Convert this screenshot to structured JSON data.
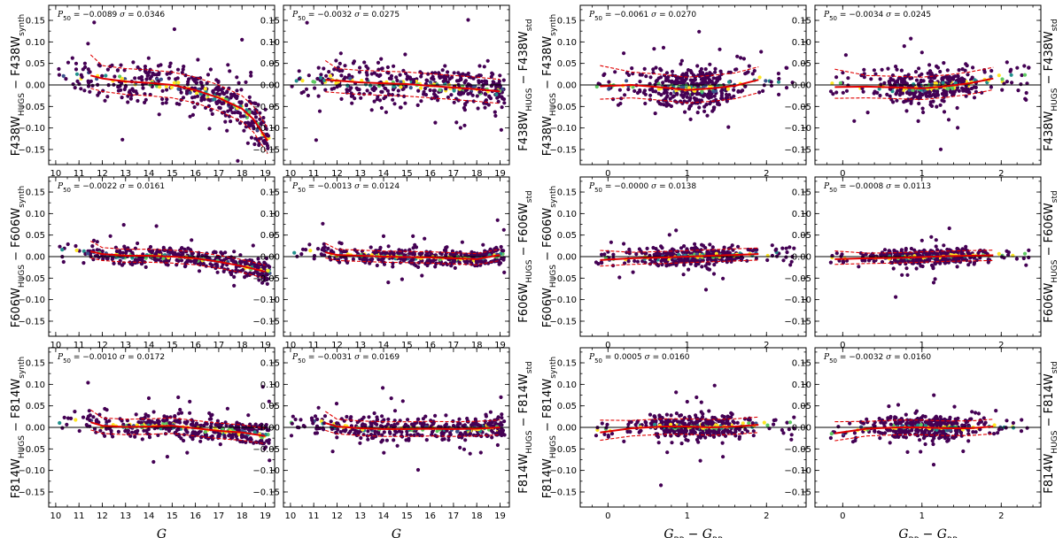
{
  "chart_data": {
    "type": "scatter",
    "description_free": true,
    "ylim": [
      -0.185,
      0.185
    ],
    "yticks": [
      -0.15,
      -0.1,
      -0.05,
      0.0,
      0.05,
      0.1,
      0.15
    ],
    "ytick_labels": [
      "−0.15",
      "−0.10",
      "−0.05",
      "0.00",
      "0.05",
      "0.10",
      "0.15"
    ],
    "columns": [
      {
        "xvar": "G",
        "xlabel": "G",
        "xlim": [
          9.7,
          19.4
        ],
        "xticks": [
          10,
          11,
          12,
          13,
          14,
          15,
          16,
          17,
          18,
          19
        ],
        "xtick_labels": [
          "10",
          "11",
          "12",
          "13",
          "14",
          "15",
          "16",
          "17",
          "18",
          "19"
        ],
        "reference": "synth"
      },
      {
        "xvar": "G",
        "xlabel": "G",
        "xlim": [
          9.7,
          19.4
        ],
        "xticks": [
          10,
          11,
          12,
          13,
          14,
          15,
          16,
          17,
          18,
          19
        ],
        "xtick_labels": [
          "10",
          "11",
          "12",
          "13",
          "14",
          "15",
          "16",
          "17",
          "18",
          "19"
        ],
        "reference": "std"
      },
      {
        "xvar": "color",
        "xlabel": "G_BP − G_RP",
        "xlim": [
          -0.35,
          2.5
        ],
        "xticks": [
          0,
          1,
          2
        ],
        "xtick_labels": [
          "0",
          "1",
          "2"
        ],
        "reference": "synth"
      },
      {
        "xvar": "color",
        "xlabel": "G_BP − G_RP",
        "xlim": [
          -0.35,
          2.5
        ],
        "xticks": [
          0,
          1,
          2
        ],
        "xtick_labels": [
          "0",
          "1",
          "2"
        ],
        "reference": "std"
      }
    ],
    "xlabels": {
      "mag": {
        "main": "G"
      },
      "color": {
        "a": "G",
        "a_sub": "BP",
        "mid": " − ",
        "b": "G",
        "b_sub": "RP"
      }
    },
    "ylabels": [
      {
        "left": {
          "main": "F438W",
          "sub1": "HUGS",
          "mid": " − F438W",
          "sub2": "synth"
        },
        "right": {
          "main": "F438W",
          "sub1": "HUGS",
          "mid": " − F438W",
          "sub2": "std"
        }
      },
      {
        "left": {
          "main": "F606W",
          "sub1": "HUGS",
          "mid": " − F606W",
          "sub2": "synth"
        },
        "right": {
          "main": "F606W",
          "sub1": "HUGS",
          "mid": " − F606W",
          "sub2": "std"
        }
      },
      {
        "left": {
          "main": "F814W",
          "sub1": "HUGS",
          "mid": " − F814W",
          "sub2": "synth"
        },
        "right": {
          "main": "F814W",
          "sub1": "HUGS",
          "mid": " − F814W",
          "sub2": "std"
        }
      }
    ],
    "panels": [
      [
        {
          "p50": "−0.0089",
          "sigma": "0.0346",
          "trend": [
            [
              11.5,
              0.022
            ],
            [
              12,
              0.015
            ],
            [
              13,
              0.008
            ],
            [
              14,
              0.005
            ],
            [
              15,
              0.0
            ],
            [
              16,
              -0.012
            ],
            [
              17,
              -0.03
            ],
            [
              18,
              -0.055
            ],
            [
              18.5,
              -0.08
            ],
            [
              19.1,
              -0.13
            ]
          ],
          "spread": 0.03
        },
        {
          "p50": "−0.0032",
          "sigma": "0.0275",
          "trend": [
            [
              11.5,
              0.012
            ],
            [
              12,
              0.01
            ],
            [
              13,
              0.006
            ],
            [
              14,
              0.004
            ],
            [
              15,
              0.002
            ],
            [
              16,
              -0.002
            ],
            [
              17,
              -0.006
            ],
            [
              18,
              -0.01
            ],
            [
              19,
              -0.015
            ]
          ],
          "spread": 0.028
        },
        {
          "p50": "−0.0061",
          "sigma": "0.0270",
          "trend": [
            [
              -0.1,
              -0.003
            ],
            [
              0.3,
              0.0
            ],
            [
              0.7,
              -0.006
            ],
            [
              1.0,
              -0.012
            ],
            [
              1.3,
              -0.008
            ],
            [
              1.6,
              -0.002
            ],
            [
              1.9,
              0.012
            ]
          ],
          "spread": 0.03
        },
        {
          "p50": "−0.0034",
          "sigma": "0.0245",
          "trend": [
            [
              -0.1,
              -0.005
            ],
            [
              0.3,
              -0.004
            ],
            [
              0.7,
              -0.006
            ],
            [
              1.0,
              -0.008
            ],
            [
              1.3,
              -0.003
            ],
            [
              1.6,
              0.004
            ],
            [
              1.9,
              0.015
            ]
          ],
          "spread": 0.026
        }
      ],
      [
        {
          "p50": "−0.0022",
          "sigma": "0.0161",
          "trend": [
            [
              11.5,
              0.012
            ],
            [
              12,
              0.006
            ],
            [
              13,
              0.002
            ],
            [
              14,
              0.002
            ],
            [
              15,
              0.0
            ],
            [
              16,
              -0.004
            ],
            [
              17,
              -0.012
            ],
            [
              18,
              -0.022
            ],
            [
              19,
              -0.035
            ]
          ],
          "spread": 0.015
        },
        {
          "p50": "−0.0013",
          "sigma": "0.0124",
          "trend": [
            [
              11.5,
              0.01
            ],
            [
              12,
              0.004
            ],
            [
              13,
              0.002
            ],
            [
              14,
              0.0
            ],
            [
              15,
              -0.001
            ],
            [
              16,
              -0.002
            ],
            [
              17,
              -0.004
            ],
            [
              18,
              -0.006
            ],
            [
              19,
              0.004
            ]
          ],
          "spread": 0.013
        },
        {
          "p50": "−0.0000",
          "sigma": "0.0138",
          "trend": [
            [
              -0.1,
              -0.008
            ],
            [
              0.3,
              -0.004
            ],
            [
              0.7,
              -0.002
            ],
            [
              1.0,
              0.0
            ],
            [
              1.3,
              0.002
            ],
            [
              1.6,
              0.004
            ],
            [
              1.9,
              0.006
            ]
          ],
          "spread": 0.014
        },
        {
          "p50": "−0.0008",
          "sigma": "0.0113",
          "trend": [
            [
              -0.1,
              -0.006
            ],
            [
              0.3,
              -0.004
            ],
            [
              0.7,
              -0.003
            ],
            [
              1.0,
              -0.001
            ],
            [
              1.3,
              0.001
            ],
            [
              1.6,
              0.002
            ],
            [
              1.9,
              0.003
            ]
          ],
          "spread": 0.012
        }
      ],
      [
        {
          "p50": "−0.0010",
          "sigma": "0.0172",
          "trend": [
            [
              11.5,
              0.012
            ],
            [
              12,
              0.004
            ],
            [
              13,
              0.001
            ],
            [
              14,
              0.002
            ],
            [
              15,
              0.004
            ],
            [
              16,
              -0.002
            ],
            [
              17,
              -0.008
            ],
            [
              18,
              -0.012
            ],
            [
              19,
              -0.02
            ]
          ],
          "spread": 0.018
        },
        {
          "p50": "−0.0031",
          "sigma": "0.0169",
          "trend": [
            [
              11.5,
              0.01
            ],
            [
              12,
              0.002
            ],
            [
              13,
              -0.002
            ],
            [
              14,
              -0.004
            ],
            [
              15,
              -0.004
            ],
            [
              16,
              -0.003
            ],
            [
              17,
              -0.004
            ],
            [
              18,
              -0.003
            ],
            [
              19,
              0.0
            ]
          ],
          "spread": 0.017
        },
        {
          "p50": "0.0005",
          "sigma": "0.0160",
          "trend": [
            [
              -0.1,
              -0.012
            ],
            [
              0.3,
              -0.002
            ],
            [
              0.7,
              0.002
            ],
            [
              1.0,
              0.002
            ],
            [
              1.3,
              0.0
            ],
            [
              1.6,
              0.002
            ],
            [
              1.9,
              0.006
            ]
          ],
          "spread": 0.018
        },
        {
          "p50": "−0.0032",
          "sigma": "0.0160",
          "trend": [
            [
              -0.1,
              -0.014
            ],
            [
              0.3,
              -0.003
            ],
            [
              0.7,
              0.0
            ],
            [
              1.0,
              0.0
            ],
            [
              1.3,
              -0.002
            ],
            [
              1.6,
              -0.002
            ],
            [
              1.9,
              0.002
            ]
          ],
          "spread": 0.017
        }
      ]
    ],
    "colors": {
      "point_low": "#440154",
      "point_mid": "#3b528b",
      "point_teal": "#21918c",
      "point_green": "#5ec962",
      "point_high": "#fde725",
      "trend": "#e00000",
      "zero_line": "#000000"
    }
  }
}
